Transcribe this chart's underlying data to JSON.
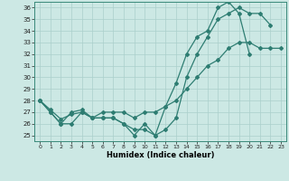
{
  "xlabel": "Humidex (Indice chaleur)",
  "xlim": [
    -0.5,
    23.5
  ],
  "ylim": [
    24.5,
    36.5
  ],
  "yticks": [
    25,
    26,
    27,
    28,
    29,
    30,
    31,
    32,
    33,
    34,
    35,
    36
  ],
  "xticks": [
    0,
    1,
    2,
    3,
    4,
    5,
    6,
    7,
    8,
    9,
    10,
    11,
    12,
    13,
    14,
    15,
    16,
    17,
    18,
    19,
    20,
    21,
    22,
    23
  ],
  "bg_color": "#cce8e4",
  "line_color": "#2e7d72",
  "grid_color": "#aacfcb",
  "series": [
    {
      "x": [
        0,
        1,
        2,
        3,
        4,
        5,
        6,
        7,
        8,
        9,
        10,
        11,
        12,
        13,
        14,
        15,
        16,
        17,
        18,
        19,
        20
      ],
      "y": [
        28,
        27,
        26,
        26,
        27,
        26.5,
        26.5,
        26.5,
        26,
        25,
        26,
        25,
        27.5,
        29.5,
        32,
        33.5,
        34,
        36,
        36.5,
        35.5,
        32
      ]
    },
    {
      "x": [
        0,
        1,
        2,
        3,
        4,
        5,
        6,
        7,
        8,
        9,
        10,
        11,
        12,
        13,
        14,
        15,
        16,
        17,
        18,
        19,
        20,
        21,
        22,
        23
      ],
      "y": [
        28,
        27.2,
        26.4,
        26.8,
        27,
        26.5,
        27,
        27,
        27,
        26.5,
        27,
        27,
        27.5,
        28,
        29,
        30,
        31,
        31.5,
        32.5,
        33,
        33,
        32.5,
        32.5,
        32.5
      ]
    },
    {
      "x": [
        0,
        1,
        2,
        3,
        4,
        5,
        6,
        7,
        8,
        9,
        10,
        11,
        12,
        13,
        14,
        15,
        16,
        17,
        18,
        19,
        20,
        21,
        22,
        23
      ],
      "y": [
        28,
        27,
        26,
        27,
        27.2,
        26.5,
        26.5,
        26.5,
        26,
        25.5,
        25.5,
        25,
        25.5,
        26.5,
        30,
        32,
        33.5,
        35,
        35.5,
        36,
        35.5,
        35.5,
        34.5,
        null
      ]
    }
  ]
}
